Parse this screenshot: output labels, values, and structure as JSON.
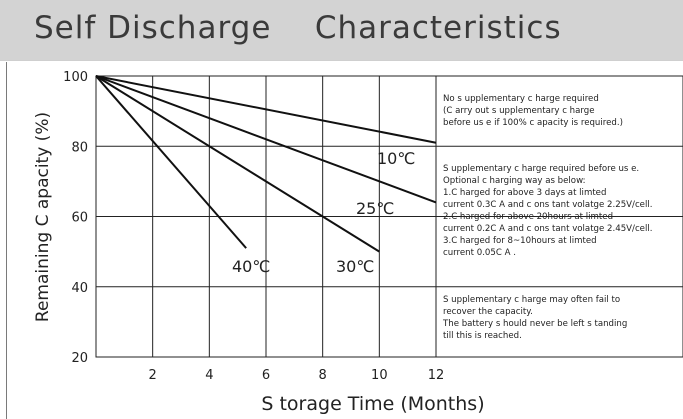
{
  "header": {
    "title": "Self Discharge    Characteristics"
  },
  "chart_data": {
    "type": "line",
    "title": "",
    "xlabel": "S torage Time (Months)",
    "ylabel": "Remaining C apacity (%)",
    "xlim": [
      0,
      12
    ],
    "ylim": [
      20,
      100
    ],
    "x_ticks": [
      "2",
      "4",
      "6",
      "8",
      "10",
      "12"
    ],
    "y_ticks": [
      "100",
      "80",
      "60",
      "40",
      "20"
    ],
    "grid": true,
    "series": [
      {
        "name": "10℃",
        "x": [
          0,
          12
        ],
        "y": [
          100,
          81
        ]
      },
      {
        "name": "25℃",
        "x": [
          0,
          12
        ],
        "y": [
          100,
          64
        ]
      },
      {
        "name": "30℃",
        "x": [
          0,
          10
        ],
        "y": [
          100,
          50
        ]
      },
      {
        "name": "40℃",
        "x": [
          0,
          5.3
        ],
        "y": [
          100,
          51
        ]
      }
    ],
    "annotations": {
      "zone1": [
        "No s upplementary c harge required",
        "(C arry out s upplementary c harge",
        "before us e if 100% c apacity is required.)"
      ],
      "zone2": [
        "S upplementary c harge required before us e.",
        "Optional c harging way as below:",
        "1.C harged for above 3 days at limted",
        "current 0.3C A and c ons tant volatge 2.25V/cell.",
        "2.C harged for above 20hours at limted",
        " current 0.2C A and c ons tant volatge 2.45V/cell.",
        "3.C harged for 8~10hours at limted",
        "current 0.05C A ."
      ],
      "zone3": [
        "S upplementary c harge may often fail to",
        "recover the capacity.",
        "The battery s hould never be left s tanding",
        "till this is reached."
      ]
    }
  }
}
